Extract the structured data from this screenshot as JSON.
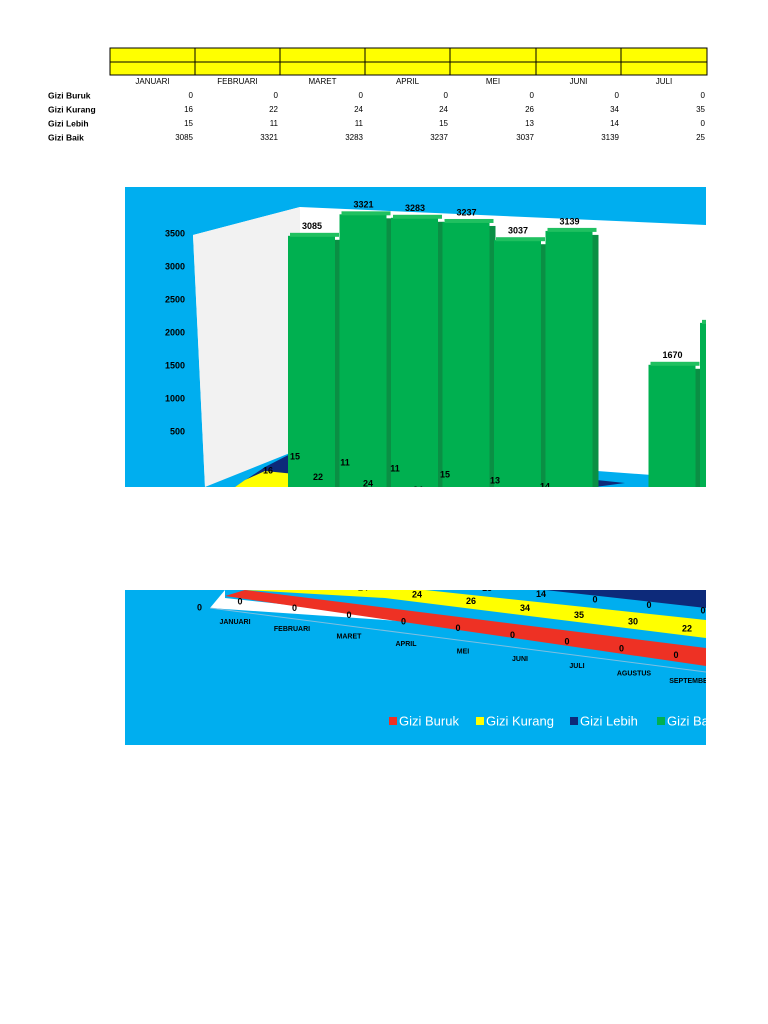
{
  "table": {
    "columns": [
      "JANUARI",
      "FEBRUARI",
      "MARET",
      "APRIL",
      "MEI",
      "JUNI",
      "JULI"
    ],
    "rows": [
      {
        "label": "Gizi Buruk",
        "values": [
          0,
          0,
          0,
          0,
          0,
          0,
          0
        ]
      },
      {
        "label": "Gizi Kurang",
        "values": [
          16,
          22,
          24,
          24,
          26,
          34,
          35
        ]
      },
      {
        "label": "Gizi Lebih",
        "values": [
          15,
          11,
          11,
          15,
          13,
          14,
          0
        ]
      },
      {
        "label": "Gizi Baik",
        "values": [
          3085,
          3321,
          3283,
          3237,
          3037,
          3139,
          25
        ]
      }
    ]
  },
  "chart_data": {
    "type": "bar3d",
    "categories": [
      "JANUARI",
      "FEBRUARI",
      "MARET",
      "APRIL",
      "MEI",
      "JUNI",
      "JULI",
      "AGUSTUS",
      "SEPTEMBER"
    ],
    "series": [
      {
        "name": "Gizi Buruk",
        "color": "#ee3124",
        "values": [
          0,
          0,
          0,
          0,
          0,
          0,
          0,
          0,
          0
        ]
      },
      {
        "name": "Gizi Kurang",
        "color": "#ffff00",
        "values": [
          16,
          22,
          24,
          24,
          26,
          34,
          35,
          30,
          22
        ]
      },
      {
        "name": "Gizi Lebih",
        "color": "#0d2a7a",
        "values": [
          15,
          11,
          11,
          15,
          13,
          14,
          0,
          0,
          0
        ]
      },
      {
        "name": "Gizi Baik",
        "color": "#00b050",
        "values": [
          3085,
          3321,
          3283,
          3237,
          3037,
          3139,
          25,
          1670,
          2130
        ]
      }
    ],
    "ylim": [
      0,
      3500
    ],
    "yticks": [
      0,
      500,
      1000,
      1500,
      2000,
      2500,
      3000,
      3500
    ],
    "legend": "bottom"
  }
}
